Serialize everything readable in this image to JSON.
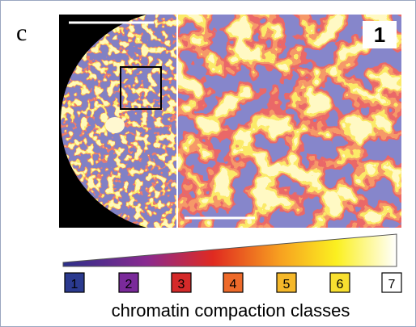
{
  "panel_label": "c",
  "inset_label": "1",
  "classes": [
    {
      "label": "1",
      "color": "#2b3a8f"
    },
    {
      "label": "2",
      "color": "#7a2a9a"
    },
    {
      "label": "3",
      "color": "#d42a2a"
    },
    {
      "label": "4",
      "color": "#ee6a2a"
    },
    {
      "label": "5",
      "color": "#f5b82a"
    },
    {
      "label": "6",
      "color": "#f8e030"
    },
    {
      "label": "7",
      "color": "#ffffff"
    }
  ],
  "caption": "chromatin compaction classes"
}
